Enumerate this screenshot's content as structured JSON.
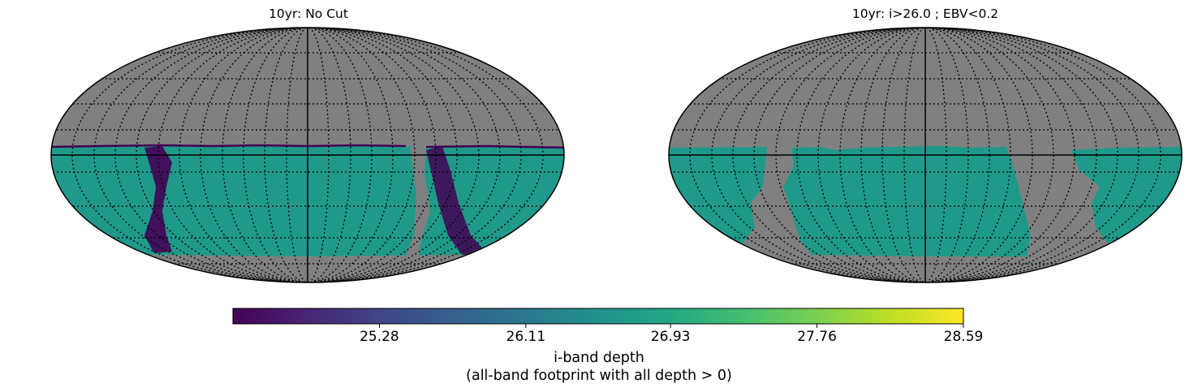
{
  "chart_data": [
    {
      "type": "heatmap",
      "projection": "mollweide",
      "title": "10yr: No Cut",
      "colormap": "viridis",
      "graticule": "dotted",
      "background_color": "#808080",
      "footprint": "southern sky below dec ~ +5 deg, gaps near galactic plane",
      "typical_value": 26.6
    },
    {
      "type": "heatmap",
      "projection": "mollweide",
      "title": "10yr: i>26.0 ; EBV<0.2",
      "colormap": "viridis",
      "graticule": "dotted",
      "background_color": "#808080",
      "footprint": "southern extragalactic footprint only",
      "typical_value": 26.6
    }
  ],
  "colorbar": {
    "range": [
      24.45,
      28.59
    ],
    "ticks": [
      "25.28",
      "26.11",
      "26.93",
      "27.76",
      "28.59"
    ],
    "tick_values": [
      25.28,
      26.11,
      26.93,
      27.76,
      28.59
    ],
    "label_line1": "i-band depth",
    "label_line2": "(all-band footprint with all depth > 0)"
  },
  "colors": {
    "background": "#808080",
    "depth_main": "#1f9a8a",
    "depth_shallow": "#440154"
  }
}
